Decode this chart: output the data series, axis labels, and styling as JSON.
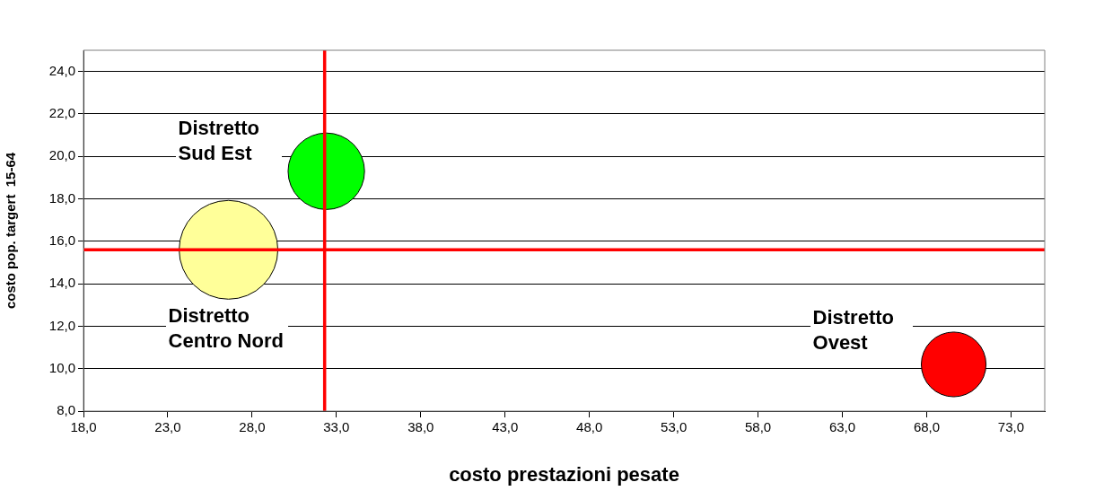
{
  "chart_data": {
    "type": "bubble",
    "xlabel": "costo prestazioni pesate",
    "ylabel": "costo pop. targert  15-64",
    "xlim": [
      18,
      75
    ],
    "ylim": [
      8,
      25
    ],
    "xticks": [
      {
        "value": 18,
        "label": "18,0"
      },
      {
        "value": 23,
        "label": "23,0"
      },
      {
        "value": 28,
        "label": "28,0"
      },
      {
        "value": 33,
        "label": "33,0"
      },
      {
        "value": 38,
        "label": "38,0"
      },
      {
        "value": 43,
        "label": "43,0"
      },
      {
        "value": 48,
        "label": "48,0"
      },
      {
        "value": 53,
        "label": "53,0"
      },
      {
        "value": 58,
        "label": "58,0"
      },
      {
        "value": 63,
        "label": "63,0"
      },
      {
        "value": 68,
        "label": "68,0"
      },
      {
        "value": 73,
        "label": "73,0"
      }
    ],
    "yticks": [
      {
        "value": 8,
        "label": "8,0"
      },
      {
        "value": 10,
        "label": "10,0"
      },
      {
        "value": 12,
        "label": "12,0"
      },
      {
        "value": 14,
        "label": "14,0"
      },
      {
        "value": 16,
        "label": "16,0"
      },
      {
        "value": 18,
        "label": "18,0"
      },
      {
        "value": 20,
        "label": "20,0"
      },
      {
        "value": 22,
        "label": "22,0"
      },
      {
        "value": 24,
        "label": "24,0"
      }
    ],
    "grid": "y",
    "legend": false,
    "series": [
      {
        "name": "Distretto Sud Est",
        "color": "#00ff00",
        "x": [
          32.4
        ],
        "values": [
          19.3
        ],
        "sizes": [
          0.6
        ]
      },
      {
        "name": "Distretto Centro Nord",
        "color": "#ffff99",
        "x": [
          26.6
        ],
        "values": [
          15.6
        ],
        "sizes": [
          1
        ]
      },
      {
        "name": "Distretto Ovest",
        "color": "#ff0000",
        "x": [
          69.6
        ],
        "values": [
          10.2
        ],
        "sizes": [
          0.43
        ]
      }
    ],
    "ref_lines": [
      {
        "axis": "x",
        "value": 32.3,
        "color": "#ff0000"
      },
      {
        "axis": "y",
        "value": 15.6,
        "color": "#ff0000"
      }
    ]
  }
}
